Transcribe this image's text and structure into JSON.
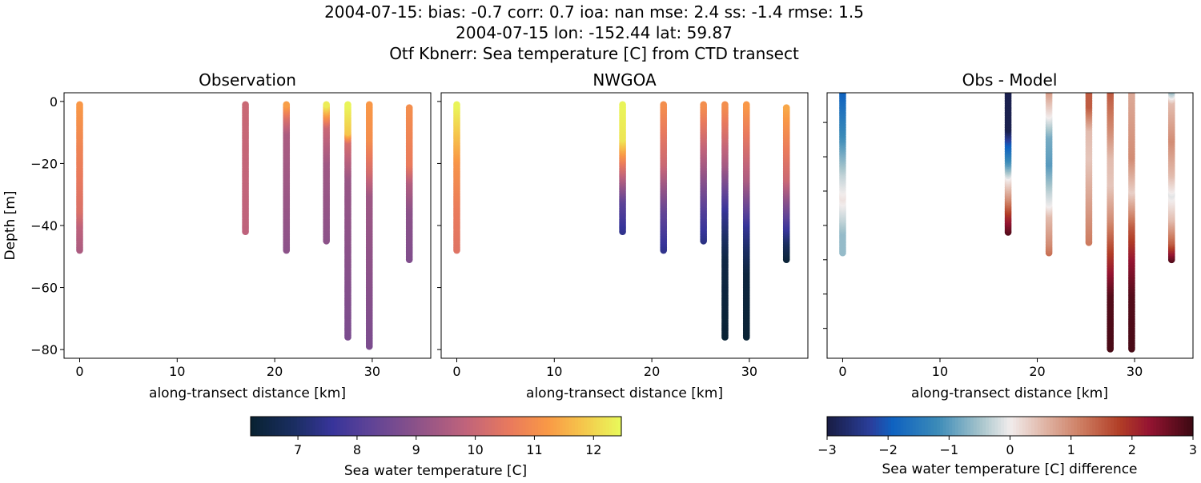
{
  "title_lines": [
    "2004-07-15: bias: -0.7  corr: 0.7  ioa: nan  mse: 2.4  ss: -1.4  rmse: 1.5",
    "2004-07-15 lon: -152.44 lat: 59.87",
    "Otf Kbnerr: Sea temperature [C] from CTD transect"
  ],
  "chart_data": [
    {
      "type": "scatter",
      "title": "Observation",
      "xlabel": "along-transect distance [km]",
      "ylabel": "Depth [m]",
      "xlim": [
        -1.6,
        36
      ],
      "ylim": [
        -82.8,
        2.8
      ],
      "xticks": [
        0,
        10,
        20,
        30
      ],
      "yticks": [
        0,
        -20,
        -40,
        -60,
        -80
      ],
      "colormap": "thermal",
      "clim": [
        6.2,
        12.47
      ],
      "profiles": [
        {
          "x": 0,
          "top": -1,
          "bottom": -48,
          "knots": [
            [
              -1,
              11.2
            ],
            [
              -15,
              10.8
            ],
            [
              -35,
              10.3
            ],
            [
              -40,
              9.8
            ],
            [
              -48,
              9.5
            ]
          ]
        },
        {
          "x": 17,
          "top": -1,
          "bottom": -42,
          "knots": [
            [
              -1,
              10.0
            ],
            [
              -42,
              9.8
            ]
          ]
        },
        {
          "x": 21.2,
          "top": -1,
          "bottom": -48,
          "knots": [
            [
              -1,
              11.3
            ],
            [
              -5,
              10.3
            ],
            [
              -10,
              9.5
            ],
            [
              -48,
              9.0
            ]
          ]
        },
        {
          "x": 25.3,
          "top": -1,
          "bottom": -45,
          "knots": [
            [
              -1,
              12.3
            ],
            [
              -4,
              11.3
            ],
            [
              -8,
              10.0
            ],
            [
              -20,
              9.3
            ],
            [
              -45,
              9.0
            ]
          ]
        },
        {
          "x": 27.5,
          "top": -1,
          "bottom": -76,
          "knots": [
            [
              -1,
              12.4
            ],
            [
              -10,
              11.8
            ],
            [
              -13,
              10.2
            ],
            [
              -25,
              9.2
            ],
            [
              -76,
              8.7
            ]
          ]
        },
        {
          "x": 29.7,
          "top": -1,
          "bottom": -79,
          "knots": [
            [
              -1,
              11.2
            ],
            [
              -12,
              11.0
            ],
            [
              -22,
              10.2
            ],
            [
              -30,
              9.3
            ],
            [
              -79,
              8.7
            ]
          ]
        },
        {
          "x": 33.8,
          "top": -2,
          "bottom": -51,
          "knots": [
            [
              -2,
              11.0
            ],
            [
              -20,
              10.6
            ],
            [
              -26,
              9.6
            ],
            [
              -35,
              9.0
            ],
            [
              -51,
              8.8
            ]
          ]
        }
      ]
    },
    {
      "type": "scatter",
      "title": "NWGOA",
      "xlabel": "along-transect distance [km]",
      "xlim": [
        -1.6,
        36
      ],
      "ylim": [
        -82.8,
        2.8
      ],
      "xticks": [
        0,
        10,
        20,
        30
      ],
      "yticks": [
        0,
        -20,
        -40,
        -60,
        -80
      ],
      "colormap": "thermal",
      "clim": [
        6.2,
        12.47
      ],
      "profiles": [
        {
          "x": 0,
          "top": -1,
          "bottom": -48,
          "knots": [
            [
              -1,
              12.4
            ],
            [
              -10,
              11.8
            ],
            [
              -20,
              11.1
            ],
            [
              -35,
              10.6
            ],
            [
              -48,
              10.4
            ]
          ]
        },
        {
          "x": 17,
          "top": -1,
          "bottom": -42,
          "knots": [
            [
              -1,
              12.4
            ],
            [
              -12,
              12.2
            ],
            [
              -20,
              10.5
            ],
            [
              -32,
              8.2
            ],
            [
              -42,
              7.4
            ]
          ]
        },
        {
          "x": 21.2,
          "top": -1,
          "bottom": -48,
          "knots": [
            [
              -1,
              11.0
            ],
            [
              -20,
              10.0
            ],
            [
              -35,
              8.3
            ],
            [
              -48,
              7.4
            ]
          ]
        },
        {
          "x": 25.3,
          "top": -1,
          "bottom": -45,
          "knots": [
            [
              -1,
              11.0
            ],
            [
              -20,
              9.4
            ],
            [
              -35,
              8.0
            ],
            [
              -45,
              7.3
            ]
          ]
        },
        {
          "x": 27.5,
          "top": -1,
          "bottom": -76,
          "knots": [
            [
              -1,
              11.0
            ],
            [
              -20,
              9.4
            ],
            [
              -35,
              7.5
            ],
            [
              -50,
              6.5
            ],
            [
              -76,
              6.25
            ]
          ]
        },
        {
          "x": 29.7,
          "top": -1,
          "bottom": -76,
          "knots": [
            [
              -1,
              11.2
            ],
            [
              -25,
              9.5
            ],
            [
              -40,
              7.5
            ],
            [
              -55,
              6.4
            ],
            [
              -76,
              6.25
            ]
          ]
        },
        {
          "x": 33.8,
          "top": -2,
          "bottom": -51,
          "knots": [
            [
              -2,
              11.4
            ],
            [
              -25,
              10.0
            ],
            [
              -38,
              8.0
            ],
            [
              -46,
              6.8
            ],
            [
              -51,
              6.3
            ]
          ]
        }
      ]
    },
    {
      "type": "scatter",
      "title": "Obs - Model",
      "xlabel": "along-transect distance [km]",
      "xlim": [
        -1.6,
        36
      ],
      "ylim": [
        -78.7,
        -1.35
      ],
      "xticks": [
        0,
        10,
        20,
        30
      ],
      "yticks": [
        -10,
        -20,
        -30,
        -40,
        -50,
        -60,
        -70
      ],
      "colormap": "balance",
      "clim": [
        -3,
        3
      ],
      "profiles": [
        {
          "x": 0,
          "top": -1,
          "bottom": -48,
          "knots": [
            [
              -1,
              -1.9
            ],
            [
              -15,
              -1.1
            ],
            [
              -25,
              -0.3
            ],
            [
              -32,
              0.1
            ],
            [
              -38,
              -0.3
            ],
            [
              -42,
              -0.6
            ],
            [
              -48,
              -0.6
            ]
          ]
        },
        {
          "x": 17,
          "top": -1,
          "bottom": -42,
          "knots": [
            [
              -1,
              -2.9
            ],
            [
              -12,
              -2.9
            ],
            [
              -16,
              -2.0
            ],
            [
              -22,
              -1.0
            ],
            [
              -26,
              0.0
            ],
            [
              -32,
              1.0
            ],
            [
              -37,
              2.0
            ],
            [
              -42,
              2.8
            ]
          ]
        },
        {
          "x": 21.2,
          "top": -1,
          "bottom": -48,
          "knots": [
            [
              -1,
              0.8
            ],
            [
              -8,
              0.0
            ],
            [
              -14,
              -0.8
            ],
            [
              -22,
              -1.0
            ],
            [
              -30,
              -0.3
            ],
            [
              -34,
              0.0
            ],
            [
              -37,
              0.5
            ],
            [
              -45,
              1.0
            ],
            [
              -48,
              1.3
            ]
          ]
        },
        {
          "x": 25.3,
          "top": -1,
          "bottom": -45,
          "knots": [
            [
              -1,
              1.5
            ],
            [
              -5,
              1.5
            ],
            [
              -12,
              0.5
            ],
            [
              -20,
              0.4
            ],
            [
              -30,
              0.7
            ],
            [
              -45,
              1.2
            ]
          ]
        },
        {
          "x": 27.5,
          "top": -1,
          "bottom": -76,
          "knots": [
            [
              -1,
              1.5
            ],
            [
              -12,
              1.0
            ],
            [
              -20,
              0.5
            ],
            [
              -28,
              0.4
            ],
            [
              -38,
              1.0
            ],
            [
              -50,
              2.0
            ],
            [
              -60,
              2.8
            ],
            [
              -76,
              2.9
            ]
          ]
        },
        {
          "x": 29.7,
          "top": -1,
          "bottom": -76,
          "knots": [
            [
              -1,
              0.7
            ],
            [
              -20,
              1.0
            ],
            [
              -30,
              0.3
            ],
            [
              -40,
              1.5
            ],
            [
              -50,
              2.3
            ],
            [
              -60,
              2.8
            ],
            [
              -76,
              2.9
            ]
          ]
        },
        {
          "x": 33.8,
          "top": -1,
          "bottom": -50,
          "knots": [
            [
              -1,
              -0.5
            ],
            [
              -4,
              0.5
            ],
            [
              -15,
              1.0
            ],
            [
              -25,
              0.5
            ],
            [
              -31,
              -0.1
            ],
            [
              -38,
              0.5
            ],
            [
              -45,
              1.5
            ],
            [
              -50,
              2.8
            ]
          ]
        }
      ]
    }
  ],
  "colorbars": [
    {
      "label": "Sea water temperature [C]",
      "colormap": "thermal",
      "clim": [
        6.2,
        12.47
      ],
      "ticks": [
        7,
        8,
        9,
        10,
        11,
        12
      ]
    },
    {
      "label": "Sea water temperature [C] difference",
      "colormap": "balance",
      "clim": [
        -3,
        3
      ],
      "ticks": [
        "−3",
        "−2",
        "−1",
        "0",
        "1",
        "2",
        "3"
      ]
    }
  ],
  "colormaps": {
    "thermal": [
      [
        0,
        "#082231"
      ],
      [
        0.12,
        "#1b2e63"
      ],
      [
        0.22,
        "#37349a"
      ],
      [
        0.32,
        "#5e4397"
      ],
      [
        0.45,
        "#8d5289"
      ],
      [
        0.58,
        "#c0637b"
      ],
      [
        0.7,
        "#e97a5d"
      ],
      [
        0.8,
        "#f99846"
      ],
      [
        0.9,
        "#f5c84c"
      ],
      [
        1,
        "#e8fa5b"
      ]
    ],
    "balance": [
      [
        0,
        "#181c43"
      ],
      [
        0.12,
        "#2a3f9c"
      ],
      [
        0.18,
        "#0f62c0"
      ],
      [
        0.3,
        "#3a8ab8"
      ],
      [
        0.42,
        "#a7c5cc"
      ],
      [
        0.5,
        "#f1ecec"
      ],
      [
        0.6,
        "#dfb2a2"
      ],
      [
        0.7,
        "#cc7a5e"
      ],
      [
        0.8,
        "#b13d26"
      ],
      [
        0.88,
        "#951431"
      ],
      [
        1,
        "#3c0912"
      ]
    ]
  }
}
